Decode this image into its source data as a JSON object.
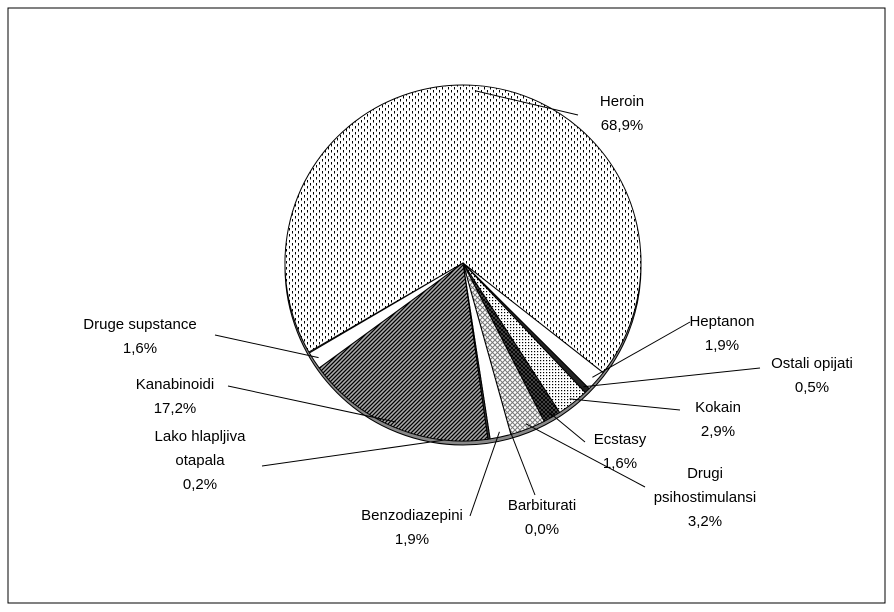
{
  "chart_data": {
    "type": "pie",
    "categories": [
      "Heroin",
      "Heptanon",
      "Ostali opijati",
      "Kokain",
      "Ecstasy",
      "Drugi psihostimulansi",
      "Barbiturati",
      "Benzodiazepini",
      "Lako hlapljiva otapala",
      "Kanabinoidi",
      "Druge supstance"
    ],
    "values": [
      68.9,
      1.9,
      0.5,
      2.9,
      1.6,
      3.2,
      0.0,
      1.9,
      0.2,
      17.2,
      1.6
    ],
    "value_labels": [
      "68,9%",
      "1,9%",
      "0,5%",
      "2,9%",
      "1,6%",
      "3,2%",
      "0,0%",
      "1,9%",
      "0,2%",
      "17,2%",
      "1,6%"
    ]
  }
}
